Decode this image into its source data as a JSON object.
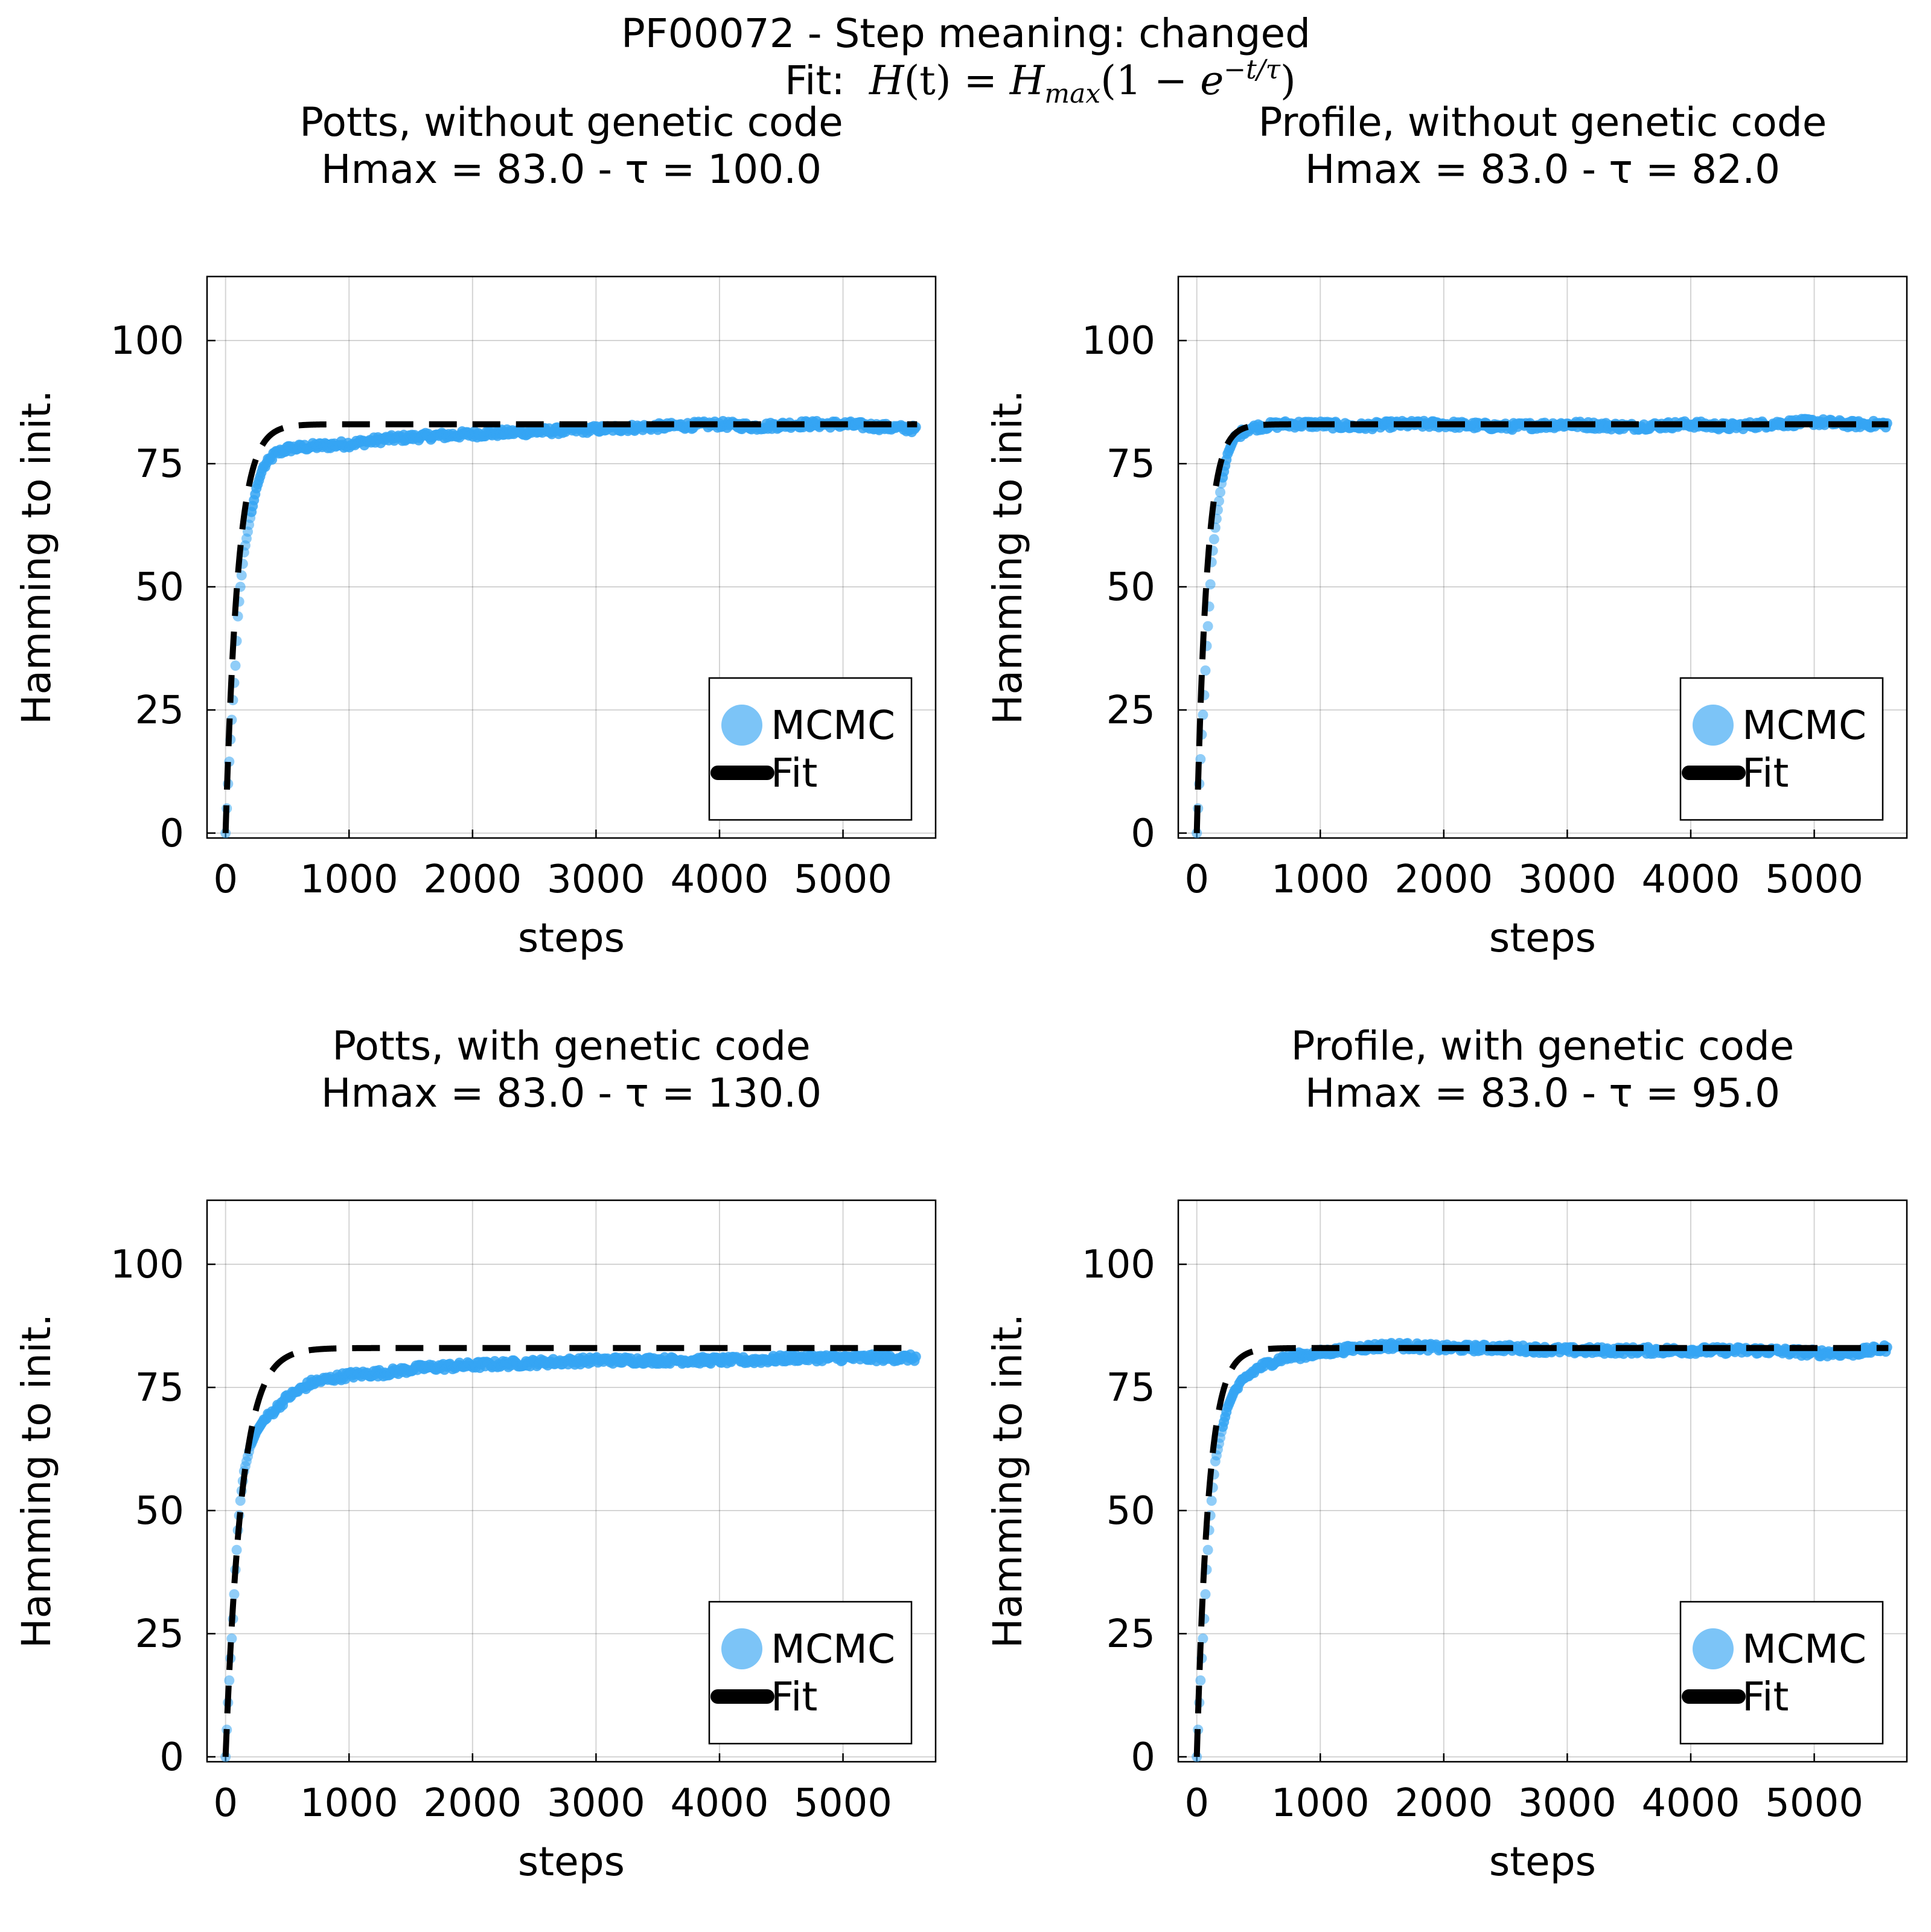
{
  "figure": {
    "suptitle": "PF00072 - Step meaning: changed",
    "fit_prefix": "Fit: ",
    "fit_formula": "H(t) = H_max(1 − e^(−t/τ))",
    "colors": {
      "mcmc": "#35a4f3",
      "fit": "#000000"
    }
  },
  "chart_data": [
    {
      "type": "scatter",
      "title": "Potts, without genetic code",
      "subtitle": "Hmax = 83.0 - τ = 100.0",
      "xlabel": "steps",
      "ylabel": "Hamming to init.",
      "xlim": [
        -150,
        5750
      ],
      "ylim": [
        -1,
        113
      ],
      "xticks": [
        0,
        1000,
        2000,
        3000,
        4000,
        5000
      ],
      "yticks": [
        0,
        25,
        50,
        75,
        100
      ],
      "grid": true,
      "legend_position": "bottom-right",
      "legend": [
        "MCMC",
        "Fit"
      ],
      "fit": {
        "hmax": 83.0,
        "tau": 100.0
      },
      "series": [
        {
          "name": "MCMC",
          "x": [
            0,
            20,
            40,
            60,
            80,
            100,
            120,
            150,
            200,
            250,
            300,
            400,
            500,
            700,
            1000,
            1300,
            1600,
            2000,
            2500,
            3000,
            3500,
            4000,
            4300,
            4600,
            5000,
            5300,
            5600
          ],
          "y": [
            0,
            10,
            19,
            27,
            34,
            44,
            50,
            57,
            64,
            70,
            74,
            77,
            78,
            78.5,
            79,
            80,
            80.5,
            81,
            81.5,
            82,
            82.5,
            83,
            82.5,
            83,
            83,
            82.5,
            82
          ]
        }
      ]
    },
    {
      "type": "scatter",
      "title": "Profile, without genetic code",
      "subtitle": "Hmax = 83.0 - τ = 82.0",
      "xlabel": "steps",
      "ylabel": "Hamming to init.",
      "xlim": [
        -150,
        5750
      ],
      "ylim": [
        -1,
        113
      ],
      "xticks": [
        0,
        1000,
        2000,
        3000,
        4000,
        5000
      ],
      "yticks": [
        0,
        25,
        50,
        75,
        100
      ],
      "grid": true,
      "legend_position": "bottom-right",
      "legend": [
        "MCMC",
        "Fit"
      ],
      "fit": {
        "hmax": 83.0,
        "tau": 82.0
      },
      "series": [
        {
          "name": "MCMC",
          "x": [
            0,
            20,
            40,
            60,
            80,
            100,
            120,
            150,
            200,
            250,
            300,
            400,
            500,
            700,
            1000,
            1300,
            1600,
            2000,
            2500,
            3000,
            3500,
            4000,
            4300,
            4600,
            5000,
            5300,
            5600
          ],
          "y": [
            0,
            10,
            20,
            28,
            38,
            46,
            55,
            62,
            71,
            77,
            80,
            82,
            82.5,
            83,
            83,
            82.5,
            83,
            83,
            82.5,
            83,
            82.5,
            83,
            82.5,
            83,
            83.5,
            83,
            83
          ]
        }
      ]
    },
    {
      "type": "scatter",
      "title": "Potts, with genetic code",
      "subtitle": "Hmax = 83.0 - τ = 130.0",
      "xlabel": "steps",
      "ylabel": "Hamming to init.",
      "xlim": [
        -150,
        5750
      ],
      "ylim": [
        -1,
        113
      ],
      "xticks": [
        0,
        1000,
        2000,
        3000,
        4000,
        5000
      ],
      "yticks": [
        0,
        25,
        50,
        75,
        100
      ],
      "grid": true,
      "legend_position": "bottom-right",
      "legend": [
        "MCMC",
        "Fit"
      ],
      "fit": {
        "hmax": 83.0,
        "tau": 130.0
      },
      "series": [
        {
          "name": "MCMC",
          "x": [
            0,
            20,
            40,
            60,
            80,
            100,
            120,
            150,
            200,
            250,
            300,
            400,
            500,
            700,
            1000,
            1300,
            1600,
            2000,
            2500,
            3000,
            3500,
            4000,
            4300,
            4600,
            5000,
            5300,
            5600
          ],
          "y": [
            0,
            11,
            20,
            28,
            38,
            46,
            52,
            58,
            63,
            66,
            68,
            70.5,
            73,
            76,
            77.5,
            78,
            79,
            79.5,
            80,
            80.5,
            80.5,
            80.5,
            80.5,
            81,
            81,
            81,
            81
          ]
        }
      ]
    },
    {
      "type": "scatter",
      "title": "Profile, with genetic code",
      "subtitle": "Hmax = 83.0 - τ = 95.0",
      "xlabel": "steps",
      "ylabel": "Hamming to init.",
      "xlim": [
        -150,
        5750
      ],
      "ylim": [
        -1,
        113
      ],
      "xticks": [
        0,
        1000,
        2000,
        3000,
        4000,
        5000
      ],
      "yticks": [
        0,
        25,
        50,
        75,
        100
      ],
      "grid": true,
      "legend_position": "bottom-right",
      "legend": [
        "MCMC",
        "Fit"
      ],
      "fit": {
        "hmax": 83.0,
        "tau": 95.0
      },
      "series": [
        {
          "name": "MCMC",
          "x": [
            0,
            20,
            40,
            60,
            80,
            100,
            120,
            150,
            200,
            250,
            300,
            400,
            500,
            700,
            1000,
            1300,
            1600,
            2000,
            2500,
            3000,
            3500,
            4000,
            4300,
            4600,
            5000,
            5300,
            5600
          ],
          "y": [
            0,
            11,
            20,
            28,
            38,
            46,
            52,
            60,
            66,
            71,
            74,
            77,
            79,
            81,
            82,
            83,
            83.5,
            83,
            83,
            82.5,
            82.5,
            82.5,
            82.5,
            82.5,
            82,
            82,
            83
          ]
        }
      ]
    }
  ]
}
